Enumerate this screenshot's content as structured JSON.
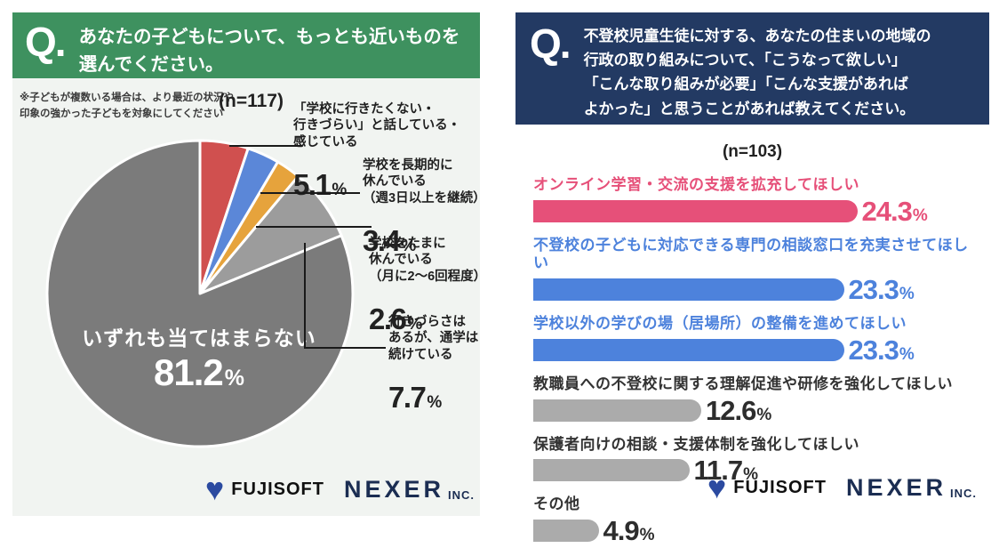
{
  "percent_sign": "%",
  "left_panel": {
    "question_prefix": "Q.",
    "title": "あなたの子どもについて、もっとも近いものを\n選んでください。",
    "note": "※子どもが複数いる場合は、より最近の状況や\n印象の強かった子どもを対象にしてください",
    "sample_size": "(n=117)",
    "header_color": "#3e915f"
  },
  "right_panel": {
    "question_prefix": "Q.",
    "title": "不登校児童生徒に対する、あなたの住まいの地域の\n行政の取り組みについて、「こうなって欲しい」\n「こんな取り組みが必要」「こんな支援があれば\nよかった」と思うことがあれば教えてください。",
    "sample_size": "(n=103)",
    "header_color": "#233a63"
  },
  "logos": {
    "heart_glyph": "♥",
    "heart_color": "#2b4aa0",
    "fujisoft": "FUJISOFT",
    "fujisoft_color": "#101010",
    "nexer": "NEXER",
    "inc": "INC.",
    "nexer_color": "#1b2d52"
  },
  "chart_data": [
    {
      "type": "pie",
      "title": "あなたの子どもについて、もっとも近いものを選んでください。",
      "sample_size": 117,
      "start_angle": "top",
      "direction": "clockwise",
      "slice_gap_color": "#ffffff",
      "slices": [
        {
          "label": "「学校に行きたくない・\n行きづらい」と話している・\n感じている",
          "value": 5.1,
          "value_label": "5.1",
          "color": "#d0504f"
        },
        {
          "label": "学校を長期的に\n休んでいる\n（週3日以上を継続）",
          "value": 3.4,
          "value_label": "3.4",
          "color": "#5b87d8"
        },
        {
          "label": "学校をたまに\n休んでいる\n（月に2〜6回程度）",
          "value": 2.6,
          "value_label": "2.6",
          "color": "#e6a33c"
        },
        {
          "label": "行きづらさは\nあるが、通学は\n続けている",
          "value": 7.7,
          "value_label": "7.7",
          "color": "#9c9c9c"
        },
        {
          "label": "いずれも当てはまらない",
          "value": 81.2,
          "value_label": "81.2",
          "color": "#7b7b7b"
        }
      ]
    },
    {
      "type": "bar",
      "orientation": "horizontal",
      "sample_size": 103,
      "xlim": [
        0,
        30
      ],
      "categories": [
        "オンライン学習・交流の支援を拡充してほしい",
        "不登校の子どもに対応できる専門の相談窓口を充実させてほしい",
        "学校以外の学びの場（居場所）の整備を進めてほしい",
        "教職員への不登校に関する理解促進や研修を強化してほしい",
        "保護者向けの相談・支援体制を強化してほしい",
        "その他"
      ],
      "values": [
        24.3,
        23.3,
        23.3,
        12.6,
        11.7,
        4.9
      ],
      "bars": [
        {
          "label": "オンライン学習・交流の支援を拡充してほしい",
          "value": 24.3,
          "value_label": "24.3",
          "color": "#e65079",
          "label_color": "#e65079",
          "value_color": "#e65079"
        },
        {
          "label": "不登校の子どもに対応できる専門の相談窓口を充実させてほしい",
          "value": 23.3,
          "value_label": "23.3",
          "color": "#4d82dc",
          "label_color": "#4d82dc",
          "value_color": "#4d82dc"
        },
        {
          "label": "学校以外の学びの場（居場所）の整備を進めてほしい",
          "value": 23.3,
          "value_label": "23.3",
          "color": "#4d82dc",
          "label_color": "#4d82dc",
          "value_color": "#4d82dc"
        },
        {
          "label": "教職員への不登校に関する理解促進や研修を強化してほしい",
          "value": 12.6,
          "value_label": "12.6",
          "color": "#ababab",
          "label_color": "#333333",
          "value_color": "#2d2d2d"
        },
        {
          "label": "保護者向けの相談・支援体制を強化してほしい",
          "value": 11.7,
          "value_label": "11.7",
          "color": "#ababab",
          "label_color": "#333333",
          "value_color": "#2d2d2d"
        },
        {
          "label": "その他",
          "value": 4.9,
          "value_label": "4.9",
          "color": "#ababab",
          "label_color": "#333333",
          "value_color": "#2d2d2d"
        }
      ]
    }
  ]
}
